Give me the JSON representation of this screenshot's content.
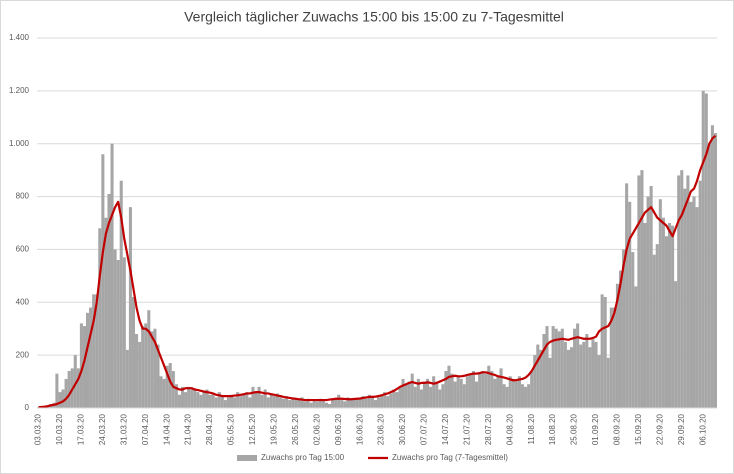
{
  "chart_data": {
    "type": "combo",
    "title": "Vergleich täglicher Zuwachs 15:00 bis 15:00 zu 7-Tagesmittel",
    "categories": [
      "03.03.20",
      null,
      null,
      null,
      null,
      null,
      null,
      "10.03.20",
      null,
      null,
      null,
      null,
      null,
      null,
      "17.03.20",
      null,
      null,
      null,
      null,
      null,
      null,
      "24.03.20",
      null,
      null,
      null,
      null,
      null,
      null,
      "31.03.20",
      null,
      null,
      null,
      null,
      null,
      null,
      "07.04.20",
      null,
      null,
      null,
      null,
      null,
      null,
      "14.04.20",
      null,
      null,
      null,
      null,
      null,
      null,
      "21.04.20",
      null,
      null,
      null,
      null,
      null,
      null,
      "28.04.20",
      null,
      null,
      null,
      null,
      null,
      null,
      "05.05.20",
      null,
      null,
      null,
      null,
      null,
      null,
      "12.05.20",
      null,
      null,
      null,
      null,
      null,
      null,
      "19.05.20",
      null,
      null,
      null,
      null,
      null,
      null,
      "26.05.20",
      null,
      null,
      null,
      null,
      null,
      null,
      "02.06.20",
      null,
      null,
      null,
      null,
      null,
      null,
      "09.06.20",
      null,
      null,
      null,
      null,
      null,
      null,
      "16.06.20",
      null,
      null,
      null,
      null,
      null,
      null,
      "23.06.20",
      null,
      null,
      null,
      null,
      null,
      null,
      "30.06.20",
      null,
      null,
      null,
      null,
      null,
      null,
      "07.07.20",
      null,
      null,
      null,
      null,
      null,
      null,
      "14.07.20",
      null,
      null,
      null,
      null,
      null,
      null,
      "21.07.20",
      null,
      null,
      null,
      null,
      null,
      null,
      "28.07.20",
      null,
      null,
      null,
      null,
      null,
      null,
      "04.08.20",
      null,
      null,
      null,
      null,
      null,
      null,
      "11.08.20",
      null,
      null,
      null,
      null,
      null,
      null,
      "18.08.20",
      null,
      null,
      null,
      null,
      null,
      null,
      "25.08.20",
      null,
      null,
      null,
      null,
      null,
      null,
      "01.09.20",
      null,
      null,
      null,
      null,
      null,
      null,
      "08.09.20",
      null,
      null,
      null,
      null,
      null,
      null,
      "15.09.20",
      null,
      null,
      null,
      null,
      null,
      null,
      "22.09.20",
      null,
      null,
      null,
      null,
      null,
      null,
      "29.09.20",
      null,
      null,
      null,
      null,
      null,
      null,
      "06.10.20",
      null,
      null,
      null,
      null
    ],
    "series": [
      {
        "name": "Zuwachs pro Tag 15:00",
        "type": "bar",
        "color": "#a6a6a6",
        "values": [
          3,
          5,
          8,
          10,
          15,
          20,
          130,
          60,
          70,
          110,
          140,
          150,
          200,
          150,
          320,
          310,
          360,
          380,
          430,
          430,
          680,
          960,
          720,
          810,
          1000,
          600,
          560,
          860,
          570,
          220,
          760,
          420,
          280,
          250,
          310,
          320,
          370,
          290,
          300,
          240,
          120,
          110,
          160,
          170,
          140,
          90,
          50,
          80,
          60,
          80,
          70,
          70,
          60,
          50,
          60,
          70,
          50,
          55,
          40,
          60,
          45,
          30,
          40,
          50,
          40,
          60,
          45,
          55,
          60,
          40,
          80,
          60,
          80,
          50,
          70,
          40,
          50,
          45,
          55,
          40,
          35,
          45,
          30,
          40,
          35,
          30,
          40,
          25,
          35,
          20,
          30,
          25,
          35,
          30,
          20,
          15,
          30,
          35,
          50,
          30,
          25,
          40,
          35,
          30,
          35,
          40,
          45,
          35,
          50,
          40,
          30,
          40,
          50,
          60,
          45,
          55,
          70,
          60,
          80,
          110,
          90,
          100,
          130,
          80,
          110,
          70,
          100,
          110,
          80,
          120,
          100,
          70,
          90,
          140,
          160,
          130,
          100,
          120,
          110,
          90,
          120,
          130,
          140,
          100,
          130,
          140,
          130,
          160,
          140,
          110,
          120,
          150,
          90,
          80,
          120,
          110,
          100,
          120,
          90,
          80,
          90,
          140,
          200,
          240,
          220,
          280,
          310,
          190,
          310,
          300,
          290,
          300,
          250,
          220,
          230,
          300,
          320,
          240,
          250,
          280,
          230,
          260,
          250,
          200,
          430,
          420,
          190,
          380,
          380,
          470,
          520,
          600,
          850,
          780,
          590,
          460,
          880,
          900,
          700,
          800,
          840,
          580,
          620,
          790,
          720,
          650,
          700,
          690,
          480,
          880,
          900,
          830,
          880,
          780,
          800,
          760,
          860,
          1200,
          1190,
          1000,
          1070,
          1040
        ]
      },
      {
        "name": "Zuwachs pro Tag (7-Tagesmittel)",
        "type": "line",
        "color": "#c00000",
        "values": [
          3,
          4,
          5,
          7,
          10,
          12,
          15,
          20,
          25,
          35,
          50,
          70,
          90,
          110,
          140,
          180,
          230,
          280,
          330,
          400,
          500,
          590,
          660,
          700,
          730,
          760,
          780,
          720,
          640,
          580,
          520,
          450,
          380,
          330,
          300,
          300,
          290,
          270,
          250,
          220,
          190,
          160,
          130,
          100,
          80,
          75,
          70,
          70,
          75,
          75,
          75,
          70,
          68,
          65,
          62,
          60,
          58,
          55,
          50,
          48,
          45,
          45,
          45,
          45,
          47,
          48,
          50,
          52,
          55,
          55,
          58,
          60,
          60,
          58,
          55,
          55,
          52,
          50,
          47,
          45,
          42,
          40,
          38,
          36,
          35,
          33,
          32,
          30,
          30,
          30,
          30,
          30,
          30,
          30,
          30,
          32,
          33,
          35,
          35,
          35,
          34,
          33,
          33,
          34,
          35,
          36,
          38,
          40,
          42,
          42,
          43,
          45,
          48,
          52,
          55,
          60,
          65,
          72,
          80,
          85,
          90,
          95,
          98,
          95,
          92,
          95,
          95,
          97,
          95,
          92,
          95,
          100,
          105,
          110,
          118,
          120,
          122,
          120,
          120,
          122,
          125,
          128,
          130,
          130,
          132,
          135,
          135,
          132,
          128,
          125,
          120,
          118,
          115,
          112,
          108,
          105,
          105,
          108,
          110,
          115,
          125,
          140,
          160,
          180,
          200,
          220,
          240,
          250,
          255,
          258,
          260,
          262,
          260,
          258,
          262,
          265,
          268,
          265,
          262,
          262,
          262,
          265,
          270,
          290,
          300,
          305,
          310,
          330,
          360,
          410,
          470,
          540,
          600,
          640,
          660,
          680,
          700,
          720,
          740,
          750,
          760,
          740,
          720,
          710,
          700,
          690,
          670,
          650,
          680,
          710,
          730,
          760,
          790,
          820,
          830,
          860,
          900,
          930,
          960,
          1000,
          1020,
          1030
        ]
      }
    ],
    "ylim": [
      0,
      1400
    ],
    "yticks": [
      0,
      200,
      400,
      600,
      800,
      {
        "value": 1000,
        "label": "1.000"
      },
      {
        "value": 1200,
        "label": "1.200"
      },
      {
        "value": 1400,
        "label": "1.400"
      }
    ],
    "grid": true
  }
}
